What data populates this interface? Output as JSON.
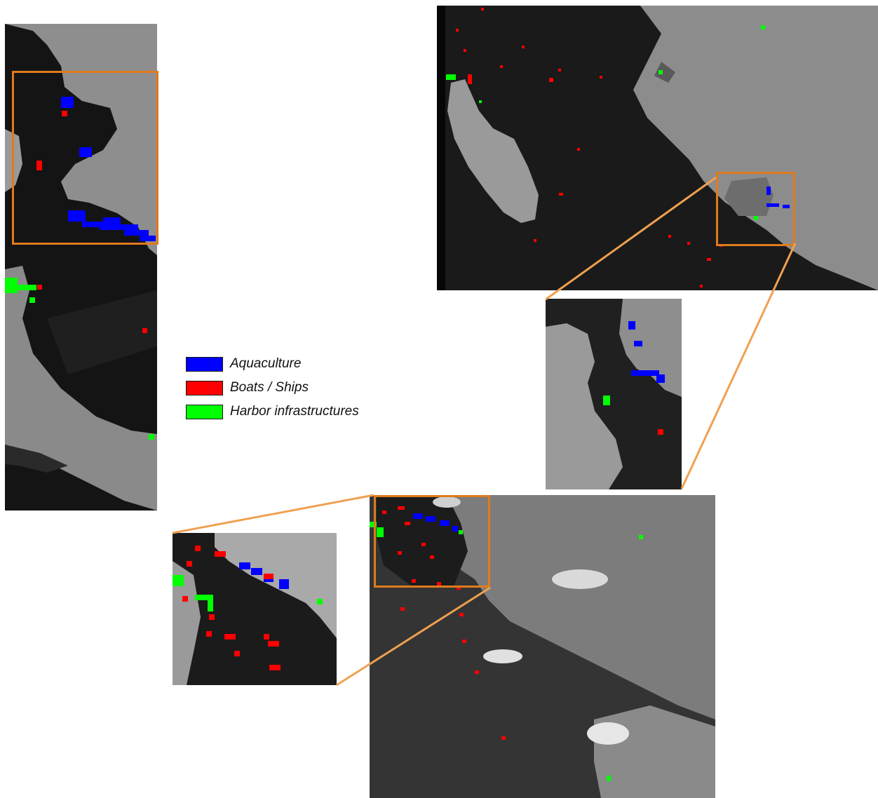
{
  "legend": {
    "items": [
      {
        "label": "Aquaculture",
        "color": "#0000ff"
      },
      {
        "label": "Boats / Ships",
        "color": "#ff0000"
      },
      {
        "label": "Harbor infrastructures",
        "color": "#00ff00"
      }
    ]
  },
  "colors": {
    "aquaculture": "#0000ff",
    "boats": "#ff0000",
    "harbor": "#00ff00",
    "zoom_box": "#e07b1c",
    "connector": "#f0a050"
  }
}
